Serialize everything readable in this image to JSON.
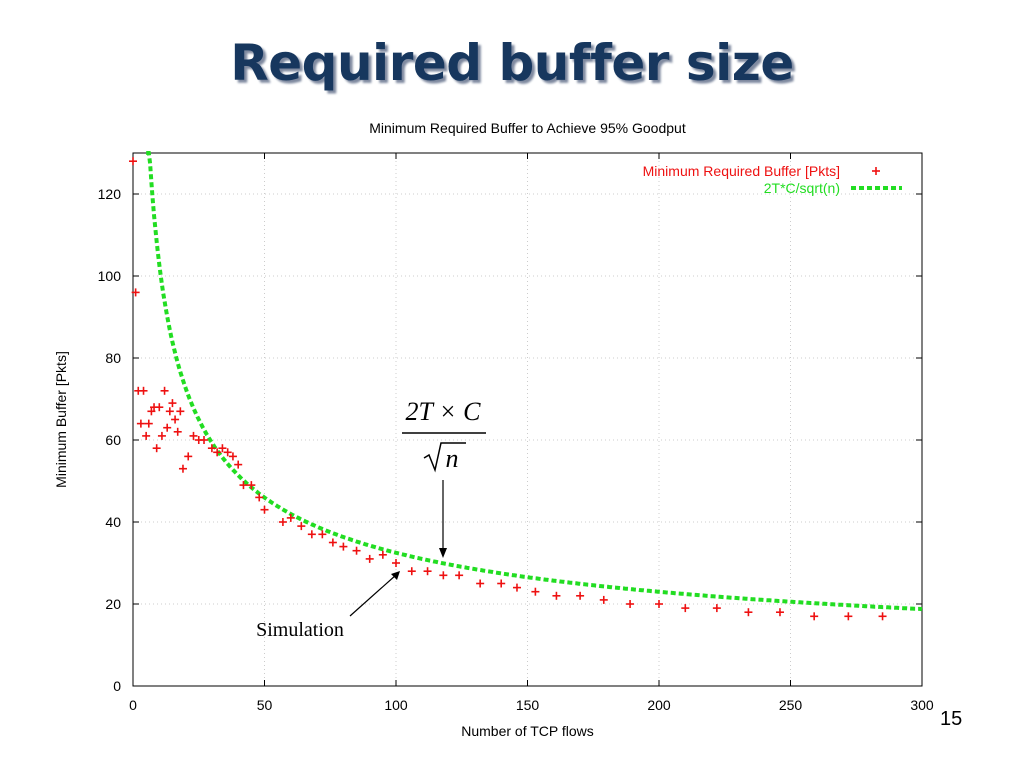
{
  "slide": {
    "title": "Required buffer size",
    "page_number": "15"
  },
  "annotations": {
    "formula_numerator": "2T × C",
    "formula_radicand": "n",
    "simulation_label": "Simulation"
  },
  "colors": {
    "title": "#17375e",
    "points": "#ee1111",
    "curve": "#22dd22",
    "grid": "#cccccc"
  },
  "chart_data": {
    "type": "scatter",
    "title": "Minimum Required Buffer to Achieve 95% Goodput",
    "xlabel": "Number of TCP flows",
    "ylabel": "Minimum Buffer [Pkts]",
    "xlim": [
      0,
      300
    ],
    "ylim": [
      0,
      130
    ],
    "xticks": [
      0,
      50,
      100,
      150,
      200,
      250,
      300
    ],
    "yticks": [
      0,
      20,
      40,
      60,
      80,
      100,
      120
    ],
    "grid": true,
    "legend_position": "top-right",
    "series": [
      {
        "name": "Minimum Required Buffer [Pkts]",
        "type": "scatter",
        "marker": "+",
        "points": [
          [
            0,
            128
          ],
          [
            1,
            96
          ],
          [
            2,
            72
          ],
          [
            4,
            72
          ],
          [
            3,
            64
          ],
          [
            6,
            64
          ],
          [
            5,
            61
          ],
          [
            7,
            67
          ],
          [
            8,
            68
          ],
          [
            10,
            68
          ],
          [
            9,
            58
          ],
          [
            12,
            72
          ],
          [
            11,
            61
          ],
          [
            13,
            63
          ],
          [
            14,
            67
          ],
          [
            15,
            69
          ],
          [
            16,
            65
          ],
          [
            17,
            62
          ],
          [
            18,
            67
          ],
          [
            19,
            53
          ],
          [
            21,
            56
          ],
          [
            23,
            61
          ],
          [
            25,
            60
          ],
          [
            27,
            60
          ],
          [
            30,
            58
          ],
          [
            32,
            57
          ],
          [
            34,
            58
          ],
          [
            36,
            57
          ],
          [
            38,
            56
          ],
          [
            40,
            54
          ],
          [
            42,
            49
          ],
          [
            45,
            49
          ],
          [
            48,
            46
          ],
          [
            50,
            43
          ],
          [
            57,
            40
          ],
          [
            60,
            41
          ],
          [
            64,
            39
          ],
          [
            68,
            37
          ],
          [
            72,
            37
          ],
          [
            76,
            35
          ],
          [
            80,
            34
          ],
          [
            85,
            33
          ],
          [
            90,
            31
          ],
          [
            95,
            32
          ],
          [
            100,
            30
          ],
          [
            106,
            28
          ],
          [
            112,
            28
          ],
          [
            118,
            27
          ],
          [
            124,
            27
          ],
          [
            132,
            25
          ],
          [
            140,
            25
          ],
          [
            146,
            24
          ],
          [
            153,
            23
          ],
          [
            161,
            22
          ],
          [
            170,
            22
          ],
          [
            179,
            21
          ],
          [
            189,
            20
          ],
          [
            200,
            20
          ],
          [
            210,
            19
          ],
          [
            222,
            19
          ],
          [
            234,
            18
          ],
          [
            246,
            18
          ],
          [
            259,
            17
          ],
          [
            272,
            17
          ],
          [
            285,
            17
          ]
        ]
      },
      {
        "name": "2T*C/sqrt(n)",
        "type": "line",
        "style": "dashed",
        "formula_coefficient": 325,
        "x_range": [
          5,
          300
        ]
      }
    ]
  }
}
